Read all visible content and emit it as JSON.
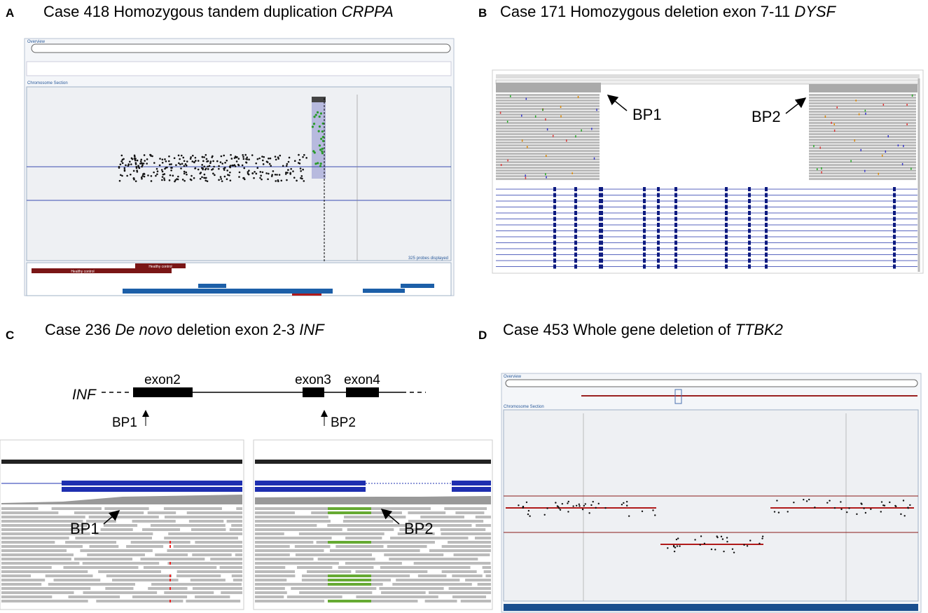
{
  "panels": [
    {
      "letter": "A",
      "title": [
        {
          "text": "Case 418 Homozygous tandem duplication ",
          "italic": false
        },
        {
          "text": "CRPPA",
          "italic": true
        }
      ],
      "labels": {
        "overview": "Overview",
        "section": "Chromosome Section",
        "probes": "325 probes displayed",
        "track1": "Healthy control",
        "track2": "Healthy control"
      }
    },
    {
      "letter": "B",
      "title": [
        {
          "text": "Case 171 Homozygous deletion exon 7-11 ",
          "italic": false
        },
        {
          "text": "DYSF",
          "italic": true
        }
      ],
      "breakpoints": [
        "BP1",
        "BP2"
      ]
    },
    {
      "letter": "C",
      "title": [
        {
          "text": "Case 236 ",
          "italic": false
        },
        {
          "text": "De novo",
          "italic": true
        },
        {
          "text": " deletion exon 2-3 ",
          "italic": false
        },
        {
          "text": "INF",
          "italic": true
        }
      ],
      "gene": "INF",
      "exons": [
        "exon2",
        "exon3",
        "exon4"
      ],
      "breakpoints": [
        "BP1",
        "BP2"
      ],
      "read_breakpoints": [
        "BP1",
        "BP2"
      ]
    },
    {
      "letter": "D",
      "title": [
        {
          "text": "Case 453 Whole gene deletion of ",
          "italic": false
        },
        {
          "text": "TTBK2",
          "italic": true
        }
      ],
      "labels": {
        "overview": "Overview",
        "section": "Chromosome Section"
      }
    }
  ]
}
